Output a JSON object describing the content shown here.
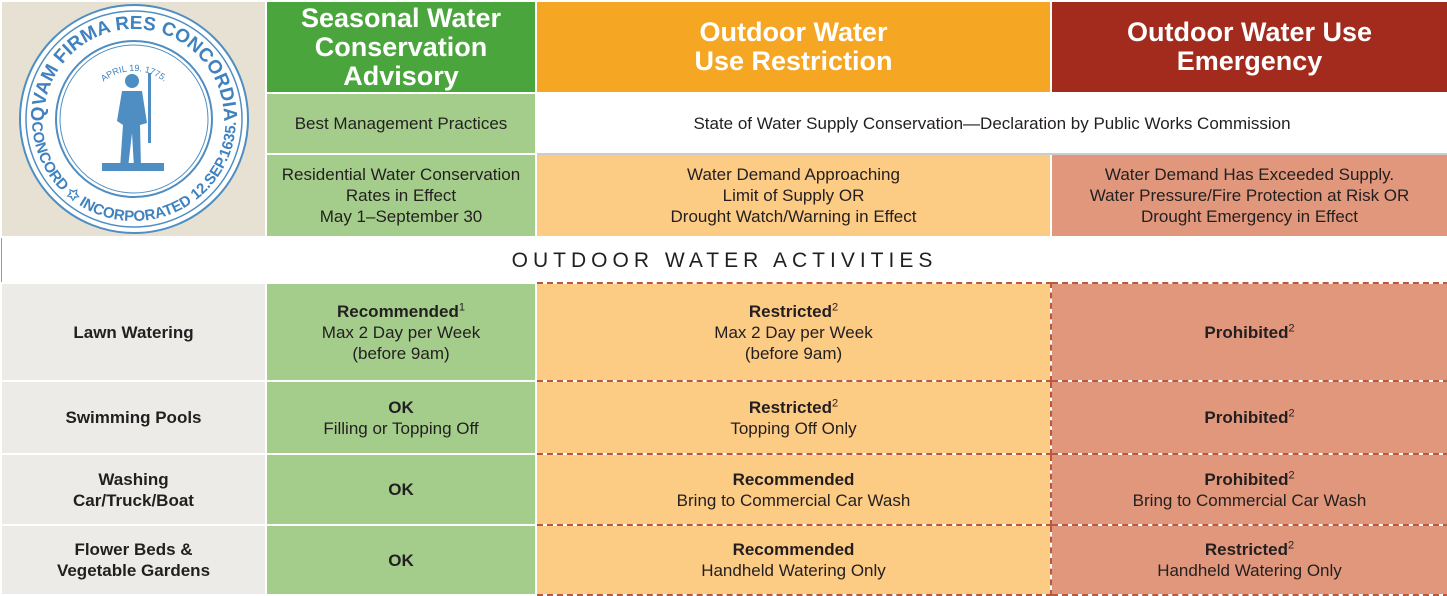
{
  "seal": {
    "top": "QVAM FIRMA RES CONCORDIA",
    "bottom": "CONCORD ✩ INCORPORATED 12.SEP.1635.",
    "date": "APRIL 19. 1775."
  },
  "header": {
    "columns": [
      [
        "Seasonal Water",
        "Conservation Advisory"
      ],
      [
        "Outdoor Water",
        "Use Restriction"
      ],
      [
        "Outdoor Water Use",
        "Emergency"
      ]
    ]
  },
  "basis": [
    "Best Management Practices",
    "State of Water Supply Conservation—Declaration by Public Works Commission"
  ],
  "triggers": [
    [
      "Residential Water Conservation",
      "Rates in Effect",
      "May 1–September 30"
    ],
    [
      "Water Demand Approaching",
      "Limit of Supply OR",
      "Drought Watch/Warning in Effect"
    ],
    [
      "Water Demand Has Exceeded Supply.",
      "Water Pressure/Fire Protection at Risk OR",
      "Drought Emergency in Effect"
    ]
  ],
  "section": "OUTDOOR WATER ACTIVITIES",
  "rows": [
    {
      "activity": [
        "Lawn Watering"
      ],
      "cells": [
        {
          "status": "Recommended",
          "note": "1",
          "details": [
            "Max 2 Day per Week",
            "(before 9am)"
          ]
        },
        {
          "status": "Restricted",
          "note": "2",
          "details": [
            "Max 2 Day per Week",
            "(before 9am)"
          ]
        },
        {
          "status": "Prohibited",
          "note": "2",
          "details": []
        }
      ]
    },
    {
      "activity": [
        "Swimming Pools"
      ],
      "cells": [
        {
          "status": "OK",
          "details": [
            "Filling or Topping Off"
          ]
        },
        {
          "status": "Restricted",
          "note": "2",
          "details": [
            "Topping Off Only"
          ]
        },
        {
          "status": "Prohibited",
          "note": "2",
          "details": []
        }
      ]
    },
    {
      "activity": [
        "Washing",
        "Car/Truck/Boat"
      ],
      "cells": [
        {
          "status": "OK",
          "details": []
        },
        {
          "status": "Recommended",
          "details": [
            "Bring to Commercial Car Wash"
          ]
        },
        {
          "status": "Prohibited",
          "note": "2",
          "details": [
            "Bring to Commercial Car Wash"
          ]
        }
      ]
    },
    {
      "activity": [
        "Flower Beds &",
        "Vegetable Gardens"
      ],
      "cells": [
        {
          "status": "OK",
          "details": []
        },
        {
          "status": "Recommended",
          "details": [
            "Handheld Watering Only"
          ]
        },
        {
          "status": "Restricted",
          "note": "2",
          "details": [
            "Handheld Watering Only"
          ]
        }
      ]
    }
  ]
}
